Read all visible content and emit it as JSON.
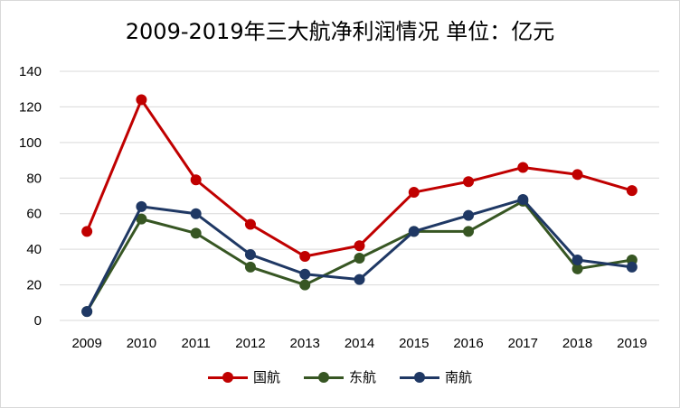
{
  "chart_data": {
    "type": "line",
    "title": "2009-2019年三大航净利润情况 单位：亿元",
    "categories": [
      "2009",
      "2010",
      "2011",
      "2012",
      "2013",
      "2014",
      "2015",
      "2016",
      "2017",
      "2018",
      "2019"
    ],
    "y_ticks": [
      "0",
      "20",
      "40",
      "60",
      "80",
      "100",
      "120",
      "140"
    ],
    "ylim": [
      0,
      140
    ],
    "grid": true,
    "legend_position": "bottom",
    "series": [
      {
        "name": "国航",
        "color": "#c00000",
        "values": [
          50,
          124,
          79,
          54,
          36,
          42,
          72,
          78,
          86,
          82,
          73
        ]
      },
      {
        "name": "东航",
        "color": "#375623",
        "values": [
          5,
          57,
          49,
          30,
          20,
          35,
          50,
          50,
          67,
          29,
          34
        ]
      },
      {
        "name": "南航",
        "color": "#1f3864",
        "values": [
          5,
          64,
          60,
          37,
          26,
          23,
          50,
          59,
          68,
          34,
          30
        ]
      }
    ]
  }
}
